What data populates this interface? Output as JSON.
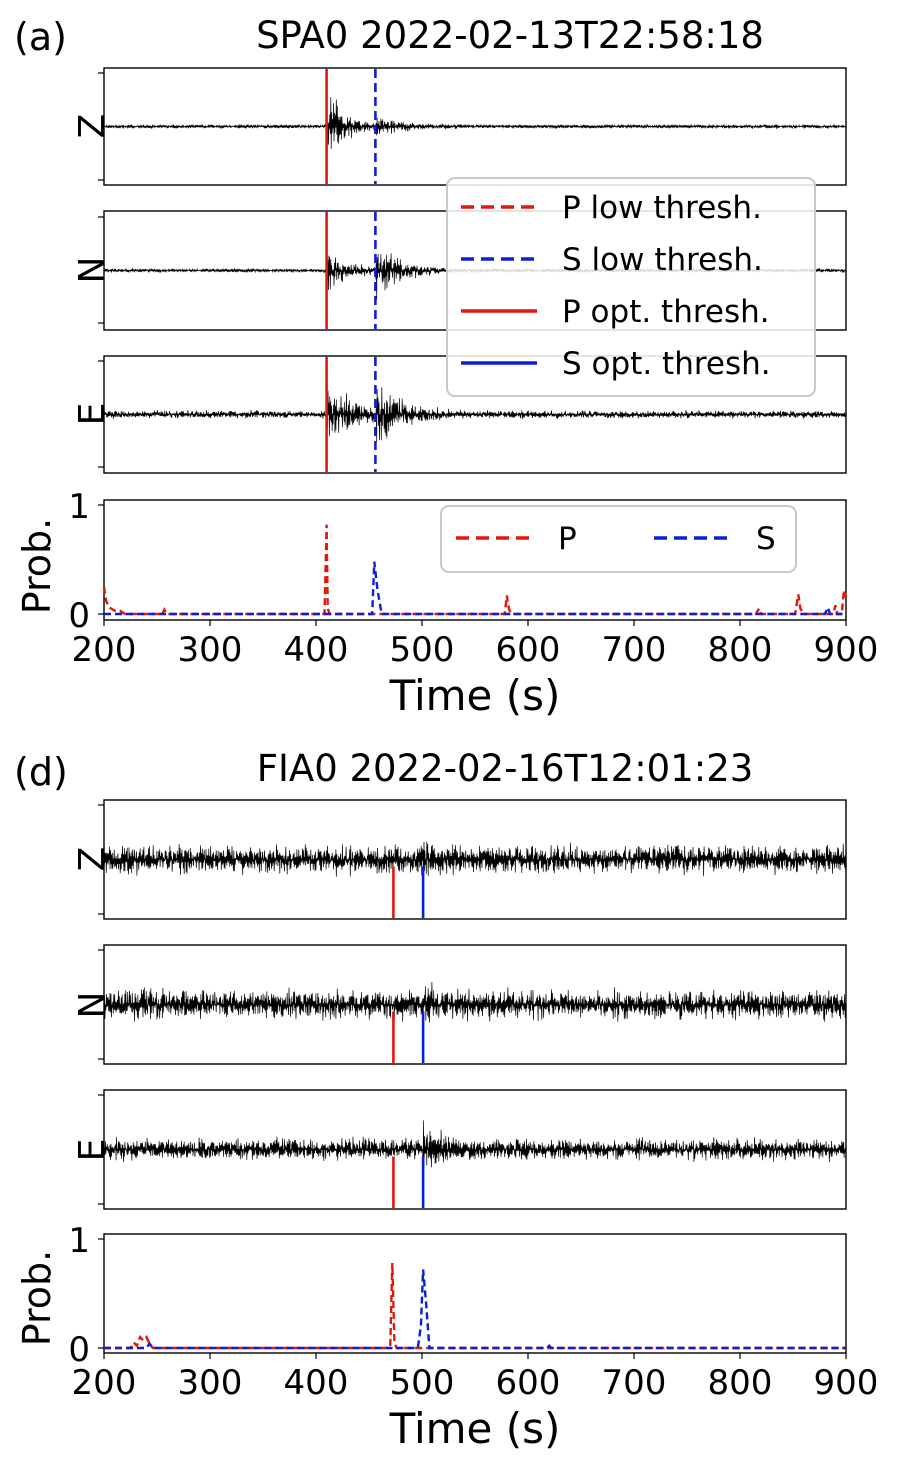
{
  "chart_data": [
    {
      "type": "line",
      "panel": "(a)",
      "title": "SPA0 2022-02-13T22:58:18",
      "channels": [
        "Z",
        "N",
        "E"
      ],
      "traces": {
        "Z": {
          "noise": 0.04,
          "events": [
            {
              "t": 410,
              "amp": 0.95,
              "decay": 16
            },
            {
              "t": 456,
              "amp": 0.22,
              "decay": 22
            }
          ]
        },
        "N": {
          "noise": 0.04,
          "events": [
            {
              "t": 410,
              "amp": 0.55,
              "decay": 16
            },
            {
              "t": 456,
              "amp": 0.55,
              "decay": 24
            }
          ]
        },
        "E": {
          "noise": 0.08,
          "events": [
            {
              "t": 410,
              "amp": 0.7,
              "decay": 22
            },
            {
              "t": 456,
              "amp": 0.65,
              "decay": 22
            }
          ]
        }
      },
      "picks": [
        {
          "phase": "P",
          "style": "solid",
          "t": 410,
          "span": "full"
        },
        {
          "phase": "S",
          "style": "dashed",
          "t": 456,
          "span": "full"
        }
      ],
      "prob_series": [
        {
          "name": "P",
          "color": "#e3170d",
          "points": [
            [
              200,
              0.25
            ],
            [
              202,
              0.12
            ],
            [
              205,
              0.06
            ],
            [
              210,
              0.03
            ],
            [
              215,
              0.03
            ],
            [
              220,
              0
            ],
            [
              255,
              0
            ],
            [
              257,
              0.04
            ],
            [
              259,
              0
            ],
            [
              408,
              0
            ],
            [
              410,
              0.82
            ],
            [
              411,
              0.05
            ],
            [
              413,
              0
            ],
            [
              578,
              0
            ],
            [
              580,
              0.17
            ],
            [
              582,
              0.05
            ],
            [
              584,
              0
            ],
            [
              815,
              0
            ],
            [
              818,
              0.05
            ],
            [
              820,
              0
            ],
            [
              852,
              0
            ],
            [
              855,
              0.18
            ],
            [
              857,
              0.05
            ],
            [
              860,
              0
            ],
            [
              888,
              0
            ],
            [
              890,
              0.08
            ],
            [
              892,
              0
            ],
            [
              896,
              0
            ],
            [
              898,
              0.22
            ],
            [
              900,
              0.15
            ]
          ]
        },
        {
          "name": "S",
          "color": "#0b1fd6",
          "points": [
            [
              200,
              0
            ],
            [
              453,
              0
            ],
            [
              455,
              0.48
            ],
            [
              458,
              0.22
            ],
            [
              462,
              0
            ],
            [
              880,
              0
            ],
            [
              883,
              0.06
            ],
            [
              885,
              0
            ],
            [
              900,
              0
            ]
          ]
        }
      ],
      "xlim": [
        200,
        900
      ],
      "ylim_prob": [
        0,
        1
      ],
      "xticks": [
        200,
        300,
        400,
        500,
        600,
        700,
        800,
        900
      ],
      "yticks_prob": [
        0,
        1
      ],
      "xlabel": "Time (s)",
      "ylabel_prob": "Prob.",
      "trace_legend": [
        "P low thresh.",
        "S low thresh.",
        "P opt. thresh.",
        "S opt. thresh."
      ],
      "prob_legend": [
        "P",
        "S"
      ],
      "grid": false
    },
    {
      "type": "line",
      "panel": "(d)",
      "title": "FIA0 2022-02-16T12:01:23",
      "channels": [
        "Z",
        "N",
        "E"
      ],
      "traces": {
        "Z": {
          "noise": 0.3,
          "events": [
            {
              "t": 500,
              "amp": 0.3,
              "decay": 10
            }
          ]
        },
        "N": {
          "noise": 0.3,
          "events": [
            {
              "t": 500,
              "amp": 0.35,
              "decay": 10
            }
          ]
        },
        "E": {
          "noise": 0.22,
          "events": [
            {
              "t": 500,
              "amp": 0.55,
              "decay": 12
            }
          ]
        }
      },
      "picks": [
        {
          "phase": "P",
          "style": "solid",
          "t": 473,
          "span": "lower"
        },
        {
          "phase": "S",
          "style": "solid",
          "t": 501,
          "span": "lower"
        }
      ],
      "prob_series": [
        {
          "name": "P",
          "color": "#e3170d",
          "points": [
            [
              200,
              0
            ],
            [
              225,
              0
            ],
            [
              228,
              0.05
            ],
            [
              231,
              0.02
            ],
            [
              234,
              0.1
            ],
            [
              237,
              0.07
            ],
            [
              240,
              0.1
            ],
            [
              243,
              0.04
            ],
            [
              246,
              0
            ],
            [
              470,
              0
            ],
            [
              472,
              0.78
            ],
            [
              474,
              0.05
            ],
            [
              476,
              0
            ],
            [
              728,
              0
            ],
            [
              730,
              0.02
            ],
            [
              732,
              0
            ],
            [
              900,
              0
            ]
          ]
        },
        {
          "name": "S",
          "color": "#0b1fd6",
          "points": [
            [
              200,
              0
            ],
            [
              240,
              0
            ],
            [
              243,
              0.04
            ],
            [
              246,
              0
            ],
            [
              496,
              0
            ],
            [
              499,
              0.2
            ],
            [
              501,
              0.72
            ],
            [
              504,
              0.4
            ],
            [
              507,
              0
            ],
            [
              618,
              0
            ],
            [
              620,
              0.02
            ],
            [
              622,
              0
            ],
            [
              900,
              0
            ]
          ]
        }
      ],
      "xlim": [
        200,
        900
      ],
      "ylim_prob": [
        0,
        1
      ],
      "xticks": [
        200,
        300,
        400,
        500,
        600,
        700,
        800,
        900
      ],
      "yticks_prob": [
        0,
        1
      ],
      "xlabel": "Time (s)",
      "ylabel_prob": "Prob.",
      "grid": false
    }
  ]
}
